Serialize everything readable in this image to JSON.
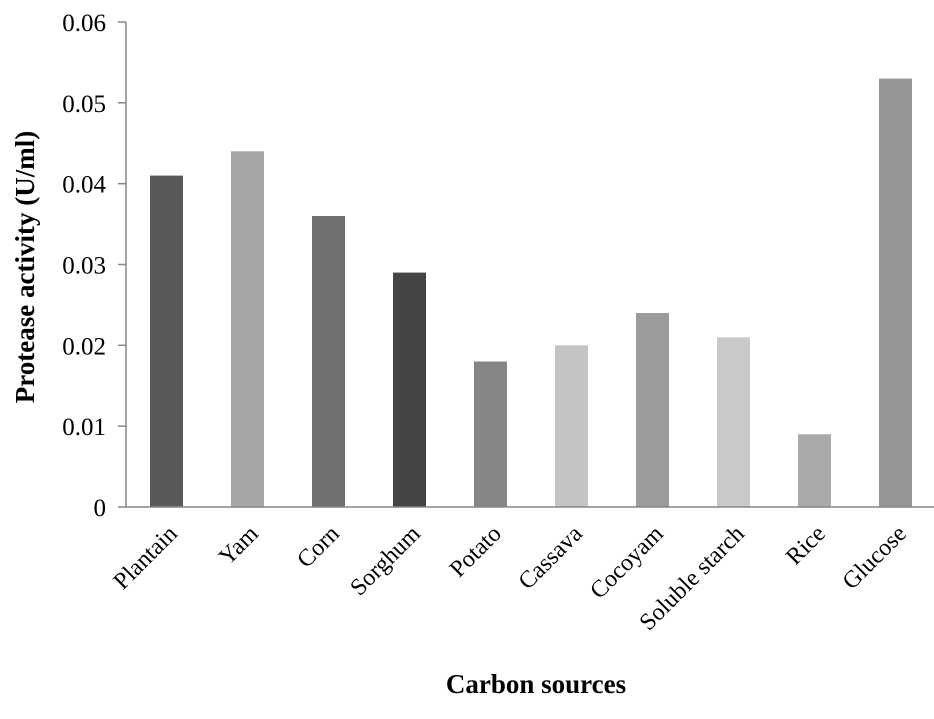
{
  "chart_data": {
    "type": "bar",
    "title": "",
    "xlabel": "Carbon sources",
    "ylabel": "Protease activity (U/ml)",
    "ylim": [
      0,
      0.06
    ],
    "yticks": [
      "0",
      "0.01",
      "0.02",
      "0.03",
      "0.04",
      "0.05",
      "0.06"
    ],
    "grid": false,
    "legend": "none",
    "categories": [
      "Plantain",
      "Yam",
      "Corn",
      "Sorghum",
      "Potato",
      "Cassava",
      "Cocoyam",
      "Soluble starch",
      "Rice",
      "Glucose"
    ],
    "values": [
      0.041,
      0.044,
      0.036,
      0.029,
      0.018,
      0.02,
      0.024,
      0.021,
      0.009,
      0.053
    ],
    "colors": [
      "#595959",
      "#a6a6a6",
      "#707070",
      "#444444",
      "#858585",
      "#c4c4c4",
      "#9b9b9b",
      "#c9c9c9",
      "#aaaaaa",
      "#969696"
    ]
  }
}
